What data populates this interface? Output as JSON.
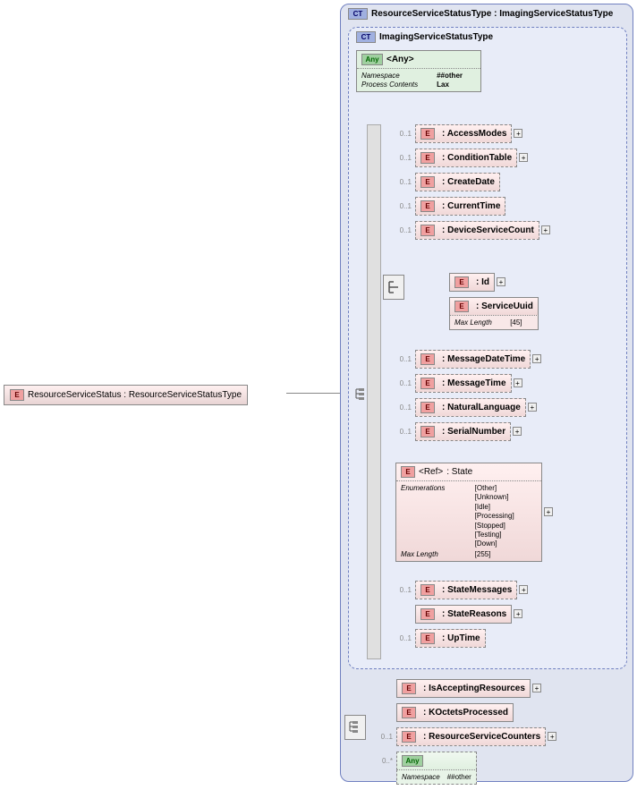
{
  "root": {
    "label": "ResourceServiceStatus : ResourceServiceStatusType",
    "badge": "E"
  },
  "outerCT": {
    "badge": "CT",
    "label": "ResourceServiceStatusType : ImagingServiceStatusType"
  },
  "innerCT": {
    "badge": "CT",
    "label": "ImagingServiceStatusType"
  },
  "anyTop": {
    "badge": "Any",
    "label": "<Any>",
    "rows": [
      {
        "lbl": "Namespace",
        "val": "##other"
      },
      {
        "lbl": "Process Contents",
        "val": "Lax"
      }
    ]
  },
  "elements": [
    {
      "occur": "0..1",
      "ref": "<Ref>",
      "name": ": AccessModes",
      "dashed": true,
      "expand": true
    },
    {
      "occur": "0..1",
      "ref": "<Ref>",
      "name": ": ConditionTable",
      "dashed": true,
      "expand": true
    },
    {
      "occur": "0..1",
      "ref": "<Ref>",
      "name": ": CreateDate",
      "dashed": true,
      "expand": false
    },
    {
      "occur": "0..1",
      "ref": "<Ref>",
      "name": ": CurrentTime",
      "dashed": true,
      "expand": false
    },
    {
      "occur": "0..1",
      "ref": "<Ref>",
      "name": ": DeviceServiceCount",
      "dashed": true,
      "expand": true
    }
  ],
  "choice": {
    "items": [
      {
        "ref": "<Ref>",
        "name": ": Id",
        "dashed": false,
        "expand": true
      },
      {
        "ref": "<Ref>",
        "name": ": ServiceUuid",
        "dashed": false,
        "expand": false,
        "facets": [
          {
            "lbl": "Max Length",
            "val": "[45]"
          }
        ]
      }
    ]
  },
  "elements2": [
    {
      "occur": "0..1",
      "ref": "<Ref>",
      "name": ": MessageDateTime",
      "dashed": true,
      "expand": true
    },
    {
      "occur": "0..1",
      "ref": "<Ref>",
      "name": ": MessageTime",
      "dashed": true,
      "expand": true
    },
    {
      "occur": "0..1",
      "ref": "<Ref>",
      "name": ": NaturalLanguage",
      "dashed": true,
      "expand": true
    },
    {
      "occur": "0..1",
      "ref": "<Ref>",
      "name": ": SerialNumber",
      "dashed": true,
      "expand": true
    }
  ],
  "state": {
    "ref": "<Ref>",
    "name": ": State",
    "enumLabel": "Enumerations",
    "enums": [
      "[Other]",
      "[Unknown]",
      "[Idle]",
      "[Processing]",
      "[Stopped]",
      "[Testing]",
      "[Down]"
    ],
    "maxLenLabel": "Max Length",
    "maxLen": "[255]"
  },
  "elements3": [
    {
      "occur": "0..1",
      "ref": "<Ref>",
      "name": ": StateMessages",
      "dashed": true,
      "expand": true
    },
    {
      "occur": "",
      "ref": "<Ref>",
      "name": ": StateReasons",
      "dashed": false,
      "expand": true
    },
    {
      "occur": "0..1",
      "ref": "<Ref>",
      "name": ": UpTime",
      "dashed": true,
      "expand": false
    }
  ],
  "bottomElements": [
    {
      "occur": "",
      "ref": "<Ref>",
      "name": ": IsAcceptingResources",
      "dashed": false,
      "expand": true
    },
    {
      "occur": "",
      "ref": "<Ref>",
      "name": ": KOctetsProcessed",
      "dashed": false,
      "expand": false
    },
    {
      "occur": "0..1",
      "ref": "<Ref>",
      "name": ": ResourceServiceCounters",
      "dashed": true,
      "expand": true
    }
  ],
  "anyBottom": {
    "occur": "0..*",
    "badge": "Any",
    "label": "<Any>",
    "rows": [
      {
        "lbl": "Namespace",
        "val": "##other"
      }
    ]
  },
  "colors": {
    "bgOuter": "#e0e4f0",
    "bgInner": "#e8ecf8",
    "elementBg": "#fff0f0"
  }
}
